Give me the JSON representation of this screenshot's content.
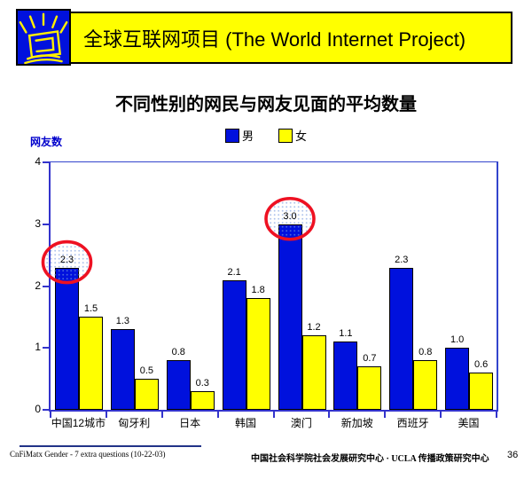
{
  "header": {
    "title": "全球互联网项目 (The World Internet Project)",
    "logo_icon": "shining-monitor-icon"
  },
  "chart_data": {
    "type": "bar",
    "title": "不同性别的网民与网友见面的平均数量",
    "ylabel": "网友数",
    "xlabel": "",
    "categories": [
      "中国12城市",
      "匈牙利",
      "日本",
      "韩国",
      "澳门",
      "新加坡",
      "西班牙",
      "美国"
    ],
    "series": [
      {
        "name": "男",
        "color": "#0011DD",
        "values": [
          2.3,
          1.3,
          0.8,
          2.1,
          3.0,
          1.1,
          2.3,
          1.0
        ]
      },
      {
        "name": "女",
        "color": "#FFFF00",
        "values": [
          1.5,
          0.5,
          0.3,
          1.8,
          1.2,
          0.7,
          0.8,
          0.6
        ]
      }
    ],
    "ylim": [
      0,
      4
    ],
    "yticks": [
      0,
      1,
      2,
      3,
      4
    ],
    "grid": false,
    "legend_position": "top-center",
    "annotations": [
      {
        "type": "circle",
        "category": "中国12城市",
        "series": "男",
        "value": 2.3
      },
      {
        "type": "circle",
        "category": "澳门",
        "series": "男",
        "value": 3.0
      }
    ]
  },
  "footer": {
    "left": "CnFiMatx Gender - 7 extra questions (10-22-03)",
    "right": "中国社会科学院社会发展研究中心 · UCLA 传播政策研究中心",
    "page": "36"
  },
  "colors": {
    "male_bar": "#0011DD",
    "female_bar": "#FFFF00",
    "axis": "#3333CC",
    "banner_bg": "#FFFF00",
    "highlight_circle": "#EE1122",
    "ylabel_text": "#0000CC"
  }
}
